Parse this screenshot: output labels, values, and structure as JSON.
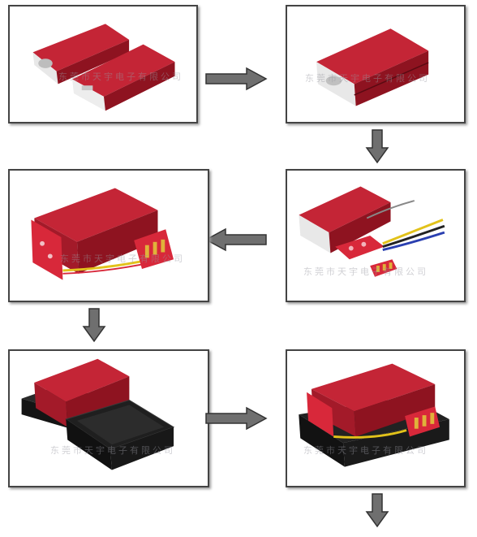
{
  "watermark": {
    "text": "东莞市天宇电子有限公司",
    "short_text": "东莞市天宇电子有限公司",
    "color": "#9a9aa6"
  },
  "colors": {
    "battery_red": "#b51f2e",
    "battery_dark": "#7a0f1a",
    "pcb_red": "#d8283a",
    "enclosure_black": "#1c1c1c",
    "arrow_gray": "#6f6f6f",
    "panel_border": "#444444"
  },
  "steps": [
    {
      "id": 1,
      "content": "two separate red cells"
    },
    {
      "id": 2,
      "content": "cells stacked"
    },
    {
      "id": 3,
      "content": "cells with PCB and wires"
    },
    {
      "id": 4,
      "content": "PCB attached to cell stack"
    },
    {
      "id": 5,
      "content": "assembly next to black case"
    },
    {
      "id": 6,
      "content": "assembly inserted in case"
    }
  ],
  "flow": [
    "right",
    "down",
    "left",
    "down",
    "right",
    "down"
  ]
}
